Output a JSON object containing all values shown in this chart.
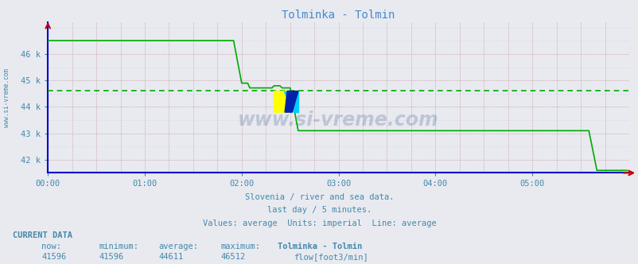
{
  "title": "Tolminka - Tolmin",
  "background_color": "#e8eaf0",
  "plot_bg_color": "#e8eaf0",
  "line_color": "#00aa00",
  "avg_line_color": "#00aa00",
  "axis_color": "#0000cc",
  "text_color": "#4488aa",
  "title_color": "#4488cc",
  "xlabel_ticks": [
    "00:00",
    "01:00",
    "02:00",
    "03:00",
    "04:00",
    "05:00"
  ],
  "ytick_positions": [
    42000,
    43000,
    44000,
    45000,
    46000
  ],
  "ytick_labels": [
    "42 k",
    "43 k",
    "44 k",
    "45 k",
    "46 k"
  ],
  "ylim": [
    41500,
    47200
  ],
  "xlim": [
    0,
    288
  ],
  "average": 44611,
  "subtitle1": "Slovenia / river and sea data.",
  "subtitle2": "last day / 5 minutes.",
  "subtitle3": "Values: average  Units: imperial  Line: average",
  "current_data_label": "CURRENT DATA",
  "col_headers": [
    "now:",
    "minimum:",
    "average:",
    "maximum:",
    "Tolminka - Tolmin"
  ],
  "col_values": [
    "41596",
    "41596",
    "44611",
    "46512",
    "flow[foot3/min]"
  ],
  "watermark": "www.si-vreme.com",
  "watermark_color": "#1a3a6a"
}
